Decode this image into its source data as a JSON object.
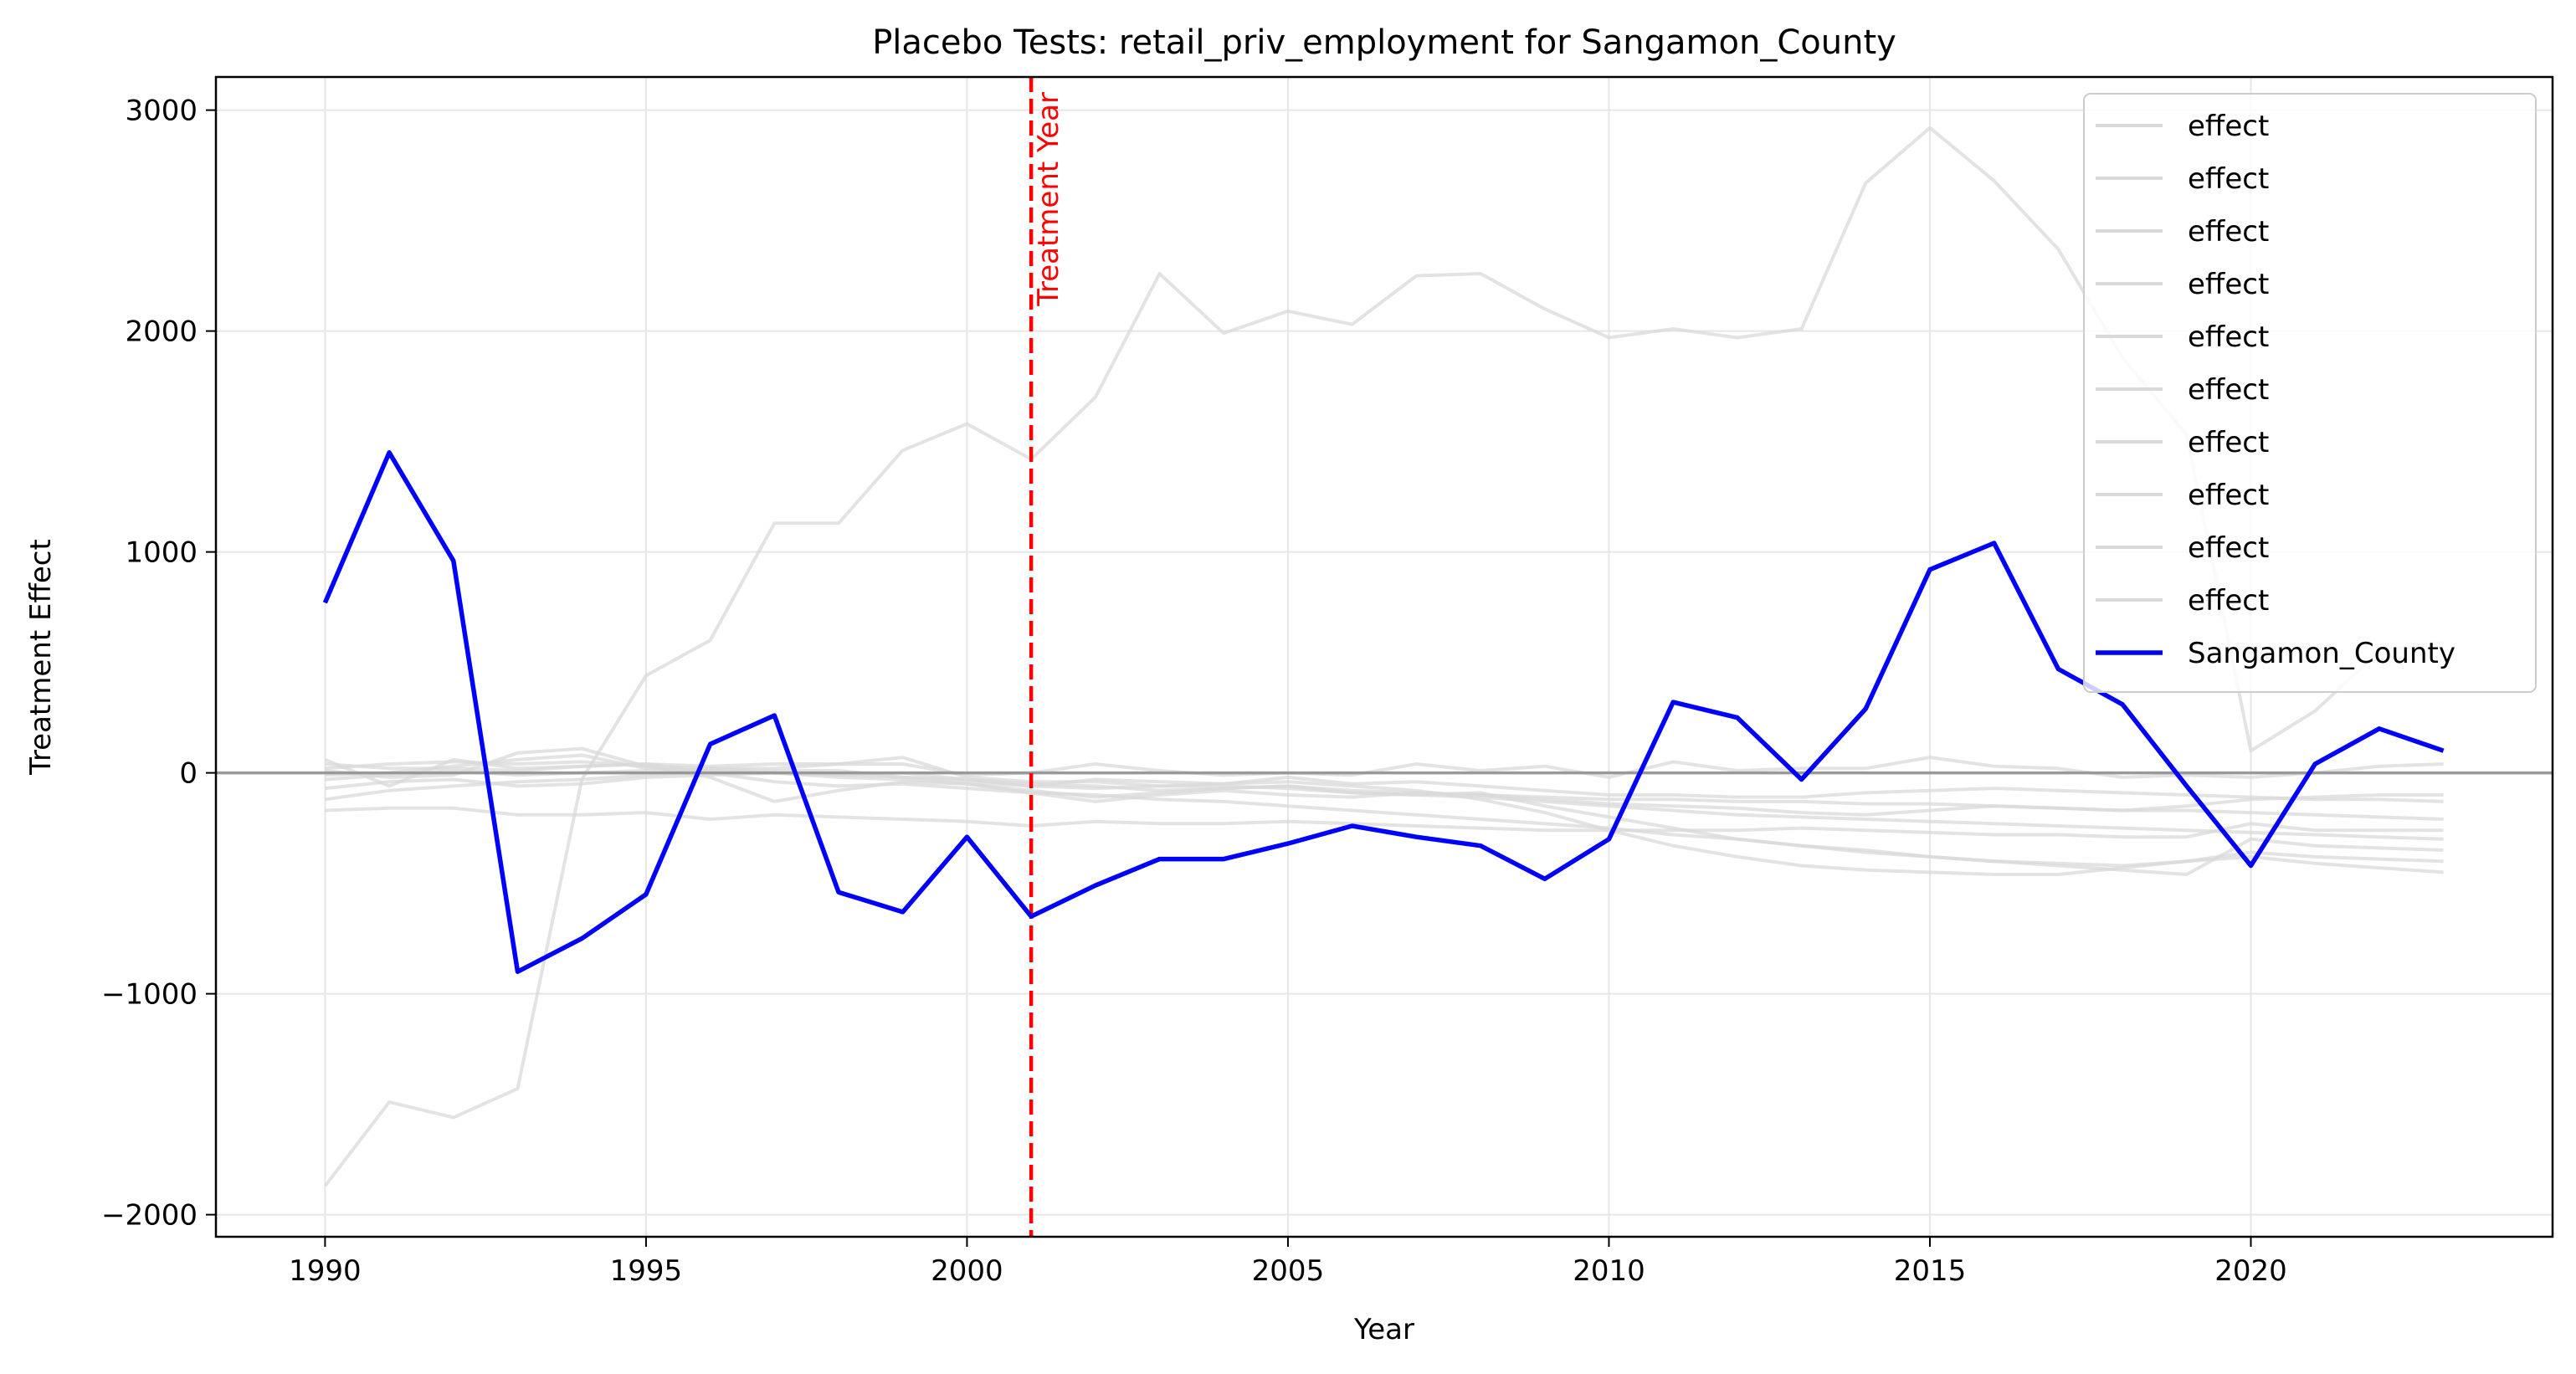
{
  "chart_data": {
    "type": "line",
    "title": "Placebo Tests: retail_priv_employment for Sangamon_County",
    "xlabel": "Year",
    "ylabel": "Treatment Effect",
    "xlim": [
      1988.3,
      2024.7
    ],
    "ylim": [
      -2100,
      3150
    ],
    "x_ticks": [
      1990,
      1995,
      2000,
      2005,
      2010,
      2015,
      2020
    ],
    "y_ticks": [
      -2000,
      -1000,
      0,
      1000,
      2000,
      3000
    ],
    "y_tick_labels": [
      "−2000",
      "−1000",
      "0",
      "1000",
      "2000",
      "3000"
    ],
    "grid": true,
    "legend_position": "top-right",
    "x": [
      1990,
      1991,
      1992,
      1993,
      1994,
      1995,
      1996,
      1997,
      1998,
      1999,
      2000,
      2001,
      2002,
      2003,
      2004,
      2005,
      2006,
      2007,
      2008,
      2009,
      2010,
      2011,
      2012,
      2013,
      2014,
      2015,
      2016,
      2017,
      2018,
      2019,
      2020,
      2021,
      2022,
      2023
    ],
    "zero_line": 0,
    "treatment_line": {
      "x": 2001,
      "label": "Treatment Year",
      "color": "#ff0000"
    },
    "colors": {
      "placebo": "#d9d9d9",
      "treated": "#0000ff",
      "zero_line": "#999999"
    },
    "series": [
      {
        "name": "effect",
        "role": "placebo",
        "values": [
          -1870,
          -1490,
          -1560,
          -1430,
          -30,
          440,
          600,
          1130,
          1130,
          1460,
          1580,
          1420,
          1700,
          2260,
          1990,
          2090,
          2030,
          2250,
          2260,
          2100,
          1970,
          2010,
          1970,
          2010,
          2670,
          2920,
          2680,
          2370,
          1880,
          1530,
          100,
          280,
          550,
          590
        ]
      },
      {
        "name": "effect",
        "role": "placebo",
        "values": [
          60,
          -60,
          60,
          20,
          30,
          40,
          0,
          -40,
          -60,
          -50,
          -70,
          -90,
          -100,
          -120,
          -130,
          -150,
          -170,
          -190,
          -210,
          -230,
          -250,
          -280,
          -300,
          -330,
          -360,
          -380,
          -400,
          -420,
          -440,
          -460,
          -300,
          -330,
          -340,
          -350
        ]
      },
      {
        "name": "effect",
        "role": "placebo",
        "values": [
          20,
          40,
          50,
          40,
          50,
          30,
          20,
          20,
          40,
          70,
          -20,
          -40,
          -40,
          -60,
          -60,
          -70,
          -90,
          -100,
          -110,
          -130,
          -150,
          -170,
          -190,
          -200,
          -210,
          -220,
          -230,
          -240,
          -250,
          -260,
          -270,
          -280,
          -290,
          -300
        ]
      },
      {
        "name": "effect",
        "role": "placebo",
        "values": [
          -30,
          -10,
          10,
          -10,
          0,
          10,
          20,
          10,
          10,
          -20,
          -30,
          -50,
          -60,
          -80,
          -70,
          -60,
          -80,
          -90,
          -100,
          -110,
          -120,
          -120,
          -130,
          -130,
          -140,
          -140,
          -150,
          -160,
          -170,
          -170,
          -180,
          -190,
          -200,
          -210
        ]
      },
      {
        "name": "effect",
        "role": "placebo",
        "values": [
          -70,
          -40,
          -30,
          -60,
          -50,
          -20,
          -10,
          0,
          -10,
          0,
          -30,
          -60,
          -30,
          -40,
          -50,
          -20,
          -50,
          -40,
          -60,
          -80,
          -100,
          -100,
          -110,
          -110,
          -90,
          -80,
          -70,
          -80,
          -90,
          -100,
          -110,
          -120,
          -120,
          -130
        ]
      },
      {
        "name": "effect",
        "role": "placebo",
        "values": [
          40,
          20,
          20,
          10,
          30,
          40,
          30,
          40,
          40,
          40,
          -10,
          0,
          40,
          10,
          -10,
          0,
          -10,
          40,
          10,
          30,
          -20,
          50,
          10,
          20,
          20,
          70,
          30,
          20,
          -20,
          -10,
          -20,
          0,
          30,
          40
        ]
      },
      {
        "name": "effect",
        "role": "placebo",
        "values": [
          -10,
          0,
          30,
          60,
          80,
          20,
          10,
          0,
          -10,
          -20,
          -40,
          -60,
          -70,
          -60,
          -50,
          -40,
          -60,
          -80,
          -120,
          -180,
          -260,
          -330,
          -380,
          -420,
          -440,
          -450,
          -460,
          -460,
          -430,
          -400,
          -380,
          -410,
          -430,
          -450
        ]
      },
      {
        "name": "effect",
        "role": "placebo",
        "values": [
          -170,
          -160,
          -160,
          -190,
          -190,
          -180,
          -210,
          -190,
          -200,
          -210,
          -220,
          -240,
          -220,
          -230,
          -230,
          -220,
          -230,
          -240,
          -250,
          -260,
          -260,
          -260,
          -260,
          -250,
          -260,
          -270,
          -280,
          -280,
          -290,
          -290,
          -230,
          -260,
          -260,
          -260
        ]
      },
      {
        "name": "effect",
        "role": "placebo",
        "values": [
          -120,
          -80,
          -60,
          -40,
          -30,
          -10,
          10,
          0,
          -20,
          -30,
          -50,
          -80,
          -110,
          -90,
          -70,
          -60,
          -90,
          -100,
          -90,
          -150,
          -200,
          -250,
          -300,
          -330,
          -350,
          -380,
          -400,
          -410,
          -420,
          -400,
          -360,
          -380,
          -390,
          -400
        ]
      },
      {
        "name": "effect",
        "role": "placebo",
        "values": [
          10,
          -20,
          -10,
          90,
          110,
          30,
          -20,
          -130,
          -80,
          -40,
          -50,
          -90,
          -130,
          -100,
          -80,
          -100,
          -110,
          -90,
          -100,
          -120,
          -140,
          -150,
          -160,
          -180,
          -190,
          -170,
          -150,
          -160,
          -170,
          -150,
          -120,
          -110,
          -100,
          -100
        ]
      },
      {
        "name": "Sangamon_County",
        "role": "treated",
        "values": [
          770,
          1450,
          960,
          -900,
          -750,
          -550,
          130,
          260,
          -540,
          -630,
          -290,
          -650,
          -510,
          -390,
          -390,
          -320,
          -240,
          -290,
          -330,
          -480,
          -300,
          320,
          250,
          -30,
          290,
          920,
          1040,
          470,
          310,
          -60,
          -420,
          40,
          200,
          100
        ]
      }
    ]
  }
}
